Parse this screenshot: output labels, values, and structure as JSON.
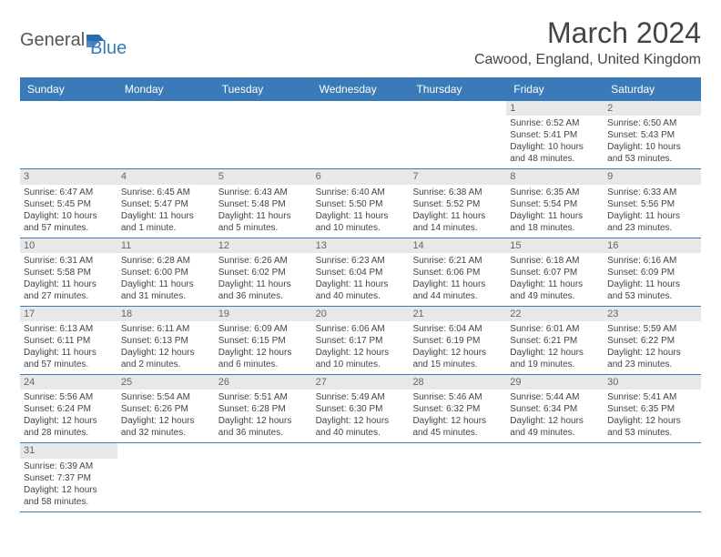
{
  "logo": {
    "text1": "General",
    "text2": "Blue"
  },
  "title": "March 2024",
  "location": "Cawood, England, United Kingdom",
  "colors": {
    "header_bg": "#3b7ab8",
    "header_text": "#ffffff",
    "daynum_bg": "#e8e8e8",
    "border": "#3b7ab8",
    "body_text": "#444444"
  },
  "weekdays": [
    "Sunday",
    "Monday",
    "Tuesday",
    "Wednesday",
    "Thursday",
    "Friday",
    "Saturday"
  ],
  "weeks": [
    [
      null,
      null,
      null,
      null,
      null,
      {
        "num": "1",
        "sunrise": "Sunrise: 6:52 AM",
        "sunset": "Sunset: 5:41 PM",
        "day1": "Daylight: 10 hours",
        "day2": "and 48 minutes."
      },
      {
        "num": "2",
        "sunrise": "Sunrise: 6:50 AM",
        "sunset": "Sunset: 5:43 PM",
        "day1": "Daylight: 10 hours",
        "day2": "and 53 minutes."
      }
    ],
    [
      {
        "num": "3",
        "sunrise": "Sunrise: 6:47 AM",
        "sunset": "Sunset: 5:45 PM",
        "day1": "Daylight: 10 hours",
        "day2": "and 57 minutes."
      },
      {
        "num": "4",
        "sunrise": "Sunrise: 6:45 AM",
        "sunset": "Sunset: 5:47 PM",
        "day1": "Daylight: 11 hours",
        "day2": "and 1 minute."
      },
      {
        "num": "5",
        "sunrise": "Sunrise: 6:43 AM",
        "sunset": "Sunset: 5:48 PM",
        "day1": "Daylight: 11 hours",
        "day2": "and 5 minutes."
      },
      {
        "num": "6",
        "sunrise": "Sunrise: 6:40 AM",
        "sunset": "Sunset: 5:50 PM",
        "day1": "Daylight: 11 hours",
        "day2": "and 10 minutes."
      },
      {
        "num": "7",
        "sunrise": "Sunrise: 6:38 AM",
        "sunset": "Sunset: 5:52 PM",
        "day1": "Daylight: 11 hours",
        "day2": "and 14 minutes."
      },
      {
        "num": "8",
        "sunrise": "Sunrise: 6:35 AM",
        "sunset": "Sunset: 5:54 PM",
        "day1": "Daylight: 11 hours",
        "day2": "and 18 minutes."
      },
      {
        "num": "9",
        "sunrise": "Sunrise: 6:33 AM",
        "sunset": "Sunset: 5:56 PM",
        "day1": "Daylight: 11 hours",
        "day2": "and 23 minutes."
      }
    ],
    [
      {
        "num": "10",
        "sunrise": "Sunrise: 6:31 AM",
        "sunset": "Sunset: 5:58 PM",
        "day1": "Daylight: 11 hours",
        "day2": "and 27 minutes."
      },
      {
        "num": "11",
        "sunrise": "Sunrise: 6:28 AM",
        "sunset": "Sunset: 6:00 PM",
        "day1": "Daylight: 11 hours",
        "day2": "and 31 minutes."
      },
      {
        "num": "12",
        "sunrise": "Sunrise: 6:26 AM",
        "sunset": "Sunset: 6:02 PM",
        "day1": "Daylight: 11 hours",
        "day2": "and 36 minutes."
      },
      {
        "num": "13",
        "sunrise": "Sunrise: 6:23 AM",
        "sunset": "Sunset: 6:04 PM",
        "day1": "Daylight: 11 hours",
        "day2": "and 40 minutes."
      },
      {
        "num": "14",
        "sunrise": "Sunrise: 6:21 AM",
        "sunset": "Sunset: 6:06 PM",
        "day1": "Daylight: 11 hours",
        "day2": "and 44 minutes."
      },
      {
        "num": "15",
        "sunrise": "Sunrise: 6:18 AM",
        "sunset": "Sunset: 6:07 PM",
        "day1": "Daylight: 11 hours",
        "day2": "and 49 minutes."
      },
      {
        "num": "16",
        "sunrise": "Sunrise: 6:16 AM",
        "sunset": "Sunset: 6:09 PM",
        "day1": "Daylight: 11 hours",
        "day2": "and 53 minutes."
      }
    ],
    [
      {
        "num": "17",
        "sunrise": "Sunrise: 6:13 AM",
        "sunset": "Sunset: 6:11 PM",
        "day1": "Daylight: 11 hours",
        "day2": "and 57 minutes."
      },
      {
        "num": "18",
        "sunrise": "Sunrise: 6:11 AM",
        "sunset": "Sunset: 6:13 PM",
        "day1": "Daylight: 12 hours",
        "day2": "and 2 minutes."
      },
      {
        "num": "19",
        "sunrise": "Sunrise: 6:09 AM",
        "sunset": "Sunset: 6:15 PM",
        "day1": "Daylight: 12 hours",
        "day2": "and 6 minutes."
      },
      {
        "num": "20",
        "sunrise": "Sunrise: 6:06 AM",
        "sunset": "Sunset: 6:17 PM",
        "day1": "Daylight: 12 hours",
        "day2": "and 10 minutes."
      },
      {
        "num": "21",
        "sunrise": "Sunrise: 6:04 AM",
        "sunset": "Sunset: 6:19 PM",
        "day1": "Daylight: 12 hours",
        "day2": "and 15 minutes."
      },
      {
        "num": "22",
        "sunrise": "Sunrise: 6:01 AM",
        "sunset": "Sunset: 6:21 PM",
        "day1": "Daylight: 12 hours",
        "day2": "and 19 minutes."
      },
      {
        "num": "23",
        "sunrise": "Sunrise: 5:59 AM",
        "sunset": "Sunset: 6:22 PM",
        "day1": "Daylight: 12 hours",
        "day2": "and 23 minutes."
      }
    ],
    [
      {
        "num": "24",
        "sunrise": "Sunrise: 5:56 AM",
        "sunset": "Sunset: 6:24 PM",
        "day1": "Daylight: 12 hours",
        "day2": "and 28 minutes."
      },
      {
        "num": "25",
        "sunrise": "Sunrise: 5:54 AM",
        "sunset": "Sunset: 6:26 PM",
        "day1": "Daylight: 12 hours",
        "day2": "and 32 minutes."
      },
      {
        "num": "26",
        "sunrise": "Sunrise: 5:51 AM",
        "sunset": "Sunset: 6:28 PM",
        "day1": "Daylight: 12 hours",
        "day2": "and 36 minutes."
      },
      {
        "num": "27",
        "sunrise": "Sunrise: 5:49 AM",
        "sunset": "Sunset: 6:30 PM",
        "day1": "Daylight: 12 hours",
        "day2": "and 40 minutes."
      },
      {
        "num": "28",
        "sunrise": "Sunrise: 5:46 AM",
        "sunset": "Sunset: 6:32 PM",
        "day1": "Daylight: 12 hours",
        "day2": "and 45 minutes."
      },
      {
        "num": "29",
        "sunrise": "Sunrise: 5:44 AM",
        "sunset": "Sunset: 6:34 PM",
        "day1": "Daylight: 12 hours",
        "day2": "and 49 minutes."
      },
      {
        "num": "30",
        "sunrise": "Sunrise: 5:41 AM",
        "sunset": "Sunset: 6:35 PM",
        "day1": "Daylight: 12 hours",
        "day2": "and 53 minutes."
      }
    ],
    [
      {
        "num": "31",
        "sunrise": "Sunrise: 6:39 AM",
        "sunset": "Sunset: 7:37 PM",
        "day1": "Daylight: 12 hours",
        "day2": "and 58 minutes."
      },
      null,
      null,
      null,
      null,
      null,
      null
    ]
  ]
}
